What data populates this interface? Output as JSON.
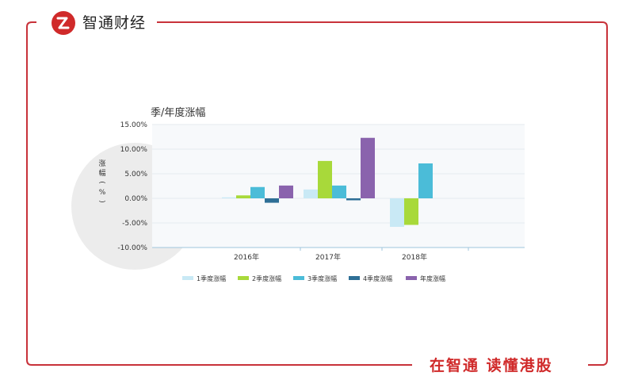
{
  "brand": {
    "name": "智通财经",
    "slogan": "在智通 读懂港股",
    "color": "#d02a2a"
  },
  "chart_data": {
    "type": "bar",
    "title": "季/年度涨幅",
    "ylabel": "涨幅(%)",
    "ylim": [
      -10,
      15
    ],
    "yticks": [
      "15.00%",
      "10.00%",
      "5.00%",
      "0.00%",
      "-5.00%",
      "-10.00%"
    ],
    "categories": [
      "2016年",
      "2017年",
      "2018年"
    ],
    "legend_position": "bottom",
    "series": [
      {
        "name": "1季度涨幅",
        "color": "#c9e9f5",
        "values": [
          0.2,
          1.8,
          -5.8
        ]
      },
      {
        "name": "2季度涨幅",
        "color": "#a8d93a",
        "values": [
          0.6,
          7.6,
          -5.4
        ]
      },
      {
        "name": "3季度涨幅",
        "color": "#4bbcd8",
        "values": [
          2.3,
          2.6,
          7.1
        ]
      },
      {
        "name": "4季度涨幅",
        "color": "#2e6f96",
        "values": [
          -0.9,
          -0.4,
          null
        ]
      },
      {
        "name": "年度涨幅",
        "color": "#8a63ad",
        "values": [
          2.6,
          12.3,
          null
        ]
      }
    ]
  }
}
